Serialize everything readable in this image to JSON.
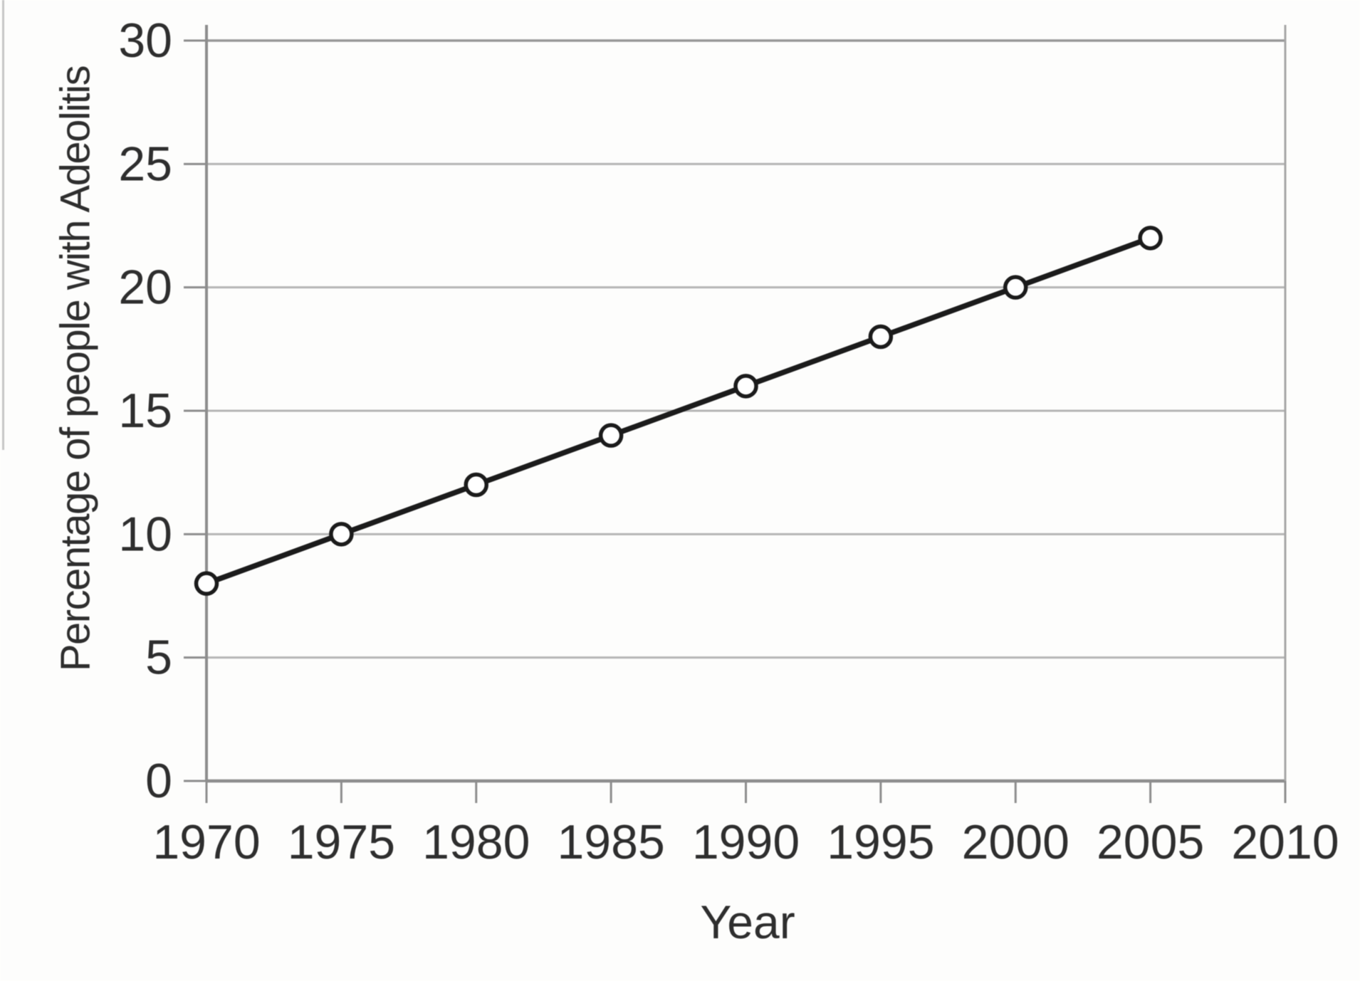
{
  "chart_data": {
    "type": "line",
    "title": "",
    "xlabel": "Year",
    "ylabel": "Percentage of people with Adeolitis",
    "x": [
      1970,
      1975,
      1980,
      1985,
      1990,
      1995,
      2000,
      2005
    ],
    "values": [
      8,
      10,
      12,
      14,
      16,
      18,
      20,
      22
    ],
    "xticks": [
      "1970",
      "1975",
      "1980",
      "1985",
      "1990",
      "1995",
      "2000",
      "2005",
      "2010"
    ],
    "xtick_values": [
      1970,
      1975,
      1980,
      1985,
      1990,
      1995,
      2000,
      2005,
      2010
    ],
    "yticks": [
      "0",
      "5",
      "10",
      "15",
      "20",
      "25",
      "30"
    ],
    "ytick_values": [
      0,
      5,
      10,
      15,
      20,
      25,
      30
    ],
    "xlim": [
      1970,
      2010
    ],
    "ylim": [
      0,
      30
    ],
    "grid": "horizontal",
    "legend": "none",
    "marker": "open-circle",
    "colors": {
      "background": "#fdfdfc",
      "line": "#1b1b1b",
      "marker_fill": "#ffffff",
      "marker_stroke": "#1b1b1b",
      "gridline": "#b5b5b5",
      "plot_top_border": "#989898",
      "plot_right_border": "#a6a6a6",
      "axis": "#8d8d8d",
      "tick_mark": "#8d8d8d",
      "text": "#2e2e2e"
    }
  }
}
